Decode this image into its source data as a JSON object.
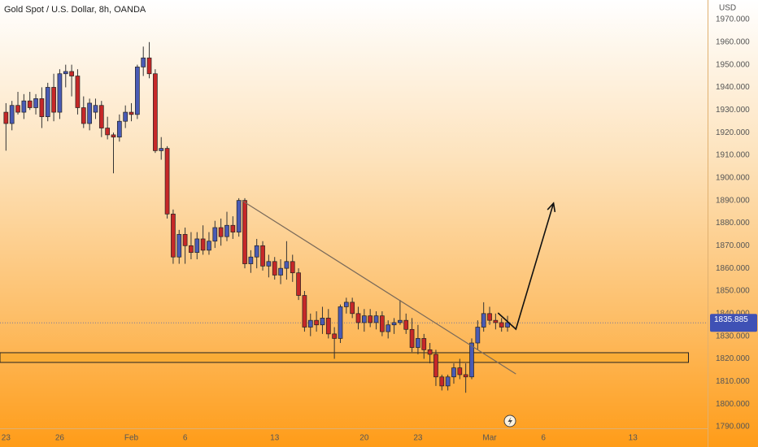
{
  "chart_data": {
    "type": "candlestick",
    "title": "Gold Spot / U.S. Dollar, 8h, OANDA",
    "currency": "USD",
    "open": [
      1929,
      1924,
      1932,
      1929,
      1934,
      1931,
      1935,
      1927,
      1940,
      1929,
      1946,
      1947,
      1945,
      1931,
      1924,
      1929,
      1932,
      1922,
      1919,
      1918,
      1925,
      1929,
      1928,
      1949,
      1953,
      1946,
      1912,
      1913,
      1884,
      1865,
      1875,
      1870,
      1867,
      1873,
      1868,
      1872,
      1878,
      1874,
      1879,
      1876,
      1890,
      1862,
      1865,
      1870,
      1861,
      1863,
      1857,
      1860,
      1863,
      1858,
      1848,
      1834,
      1837,
      1835,
      1838,
      1831,
      1829,
      1843,
      1845,
      1840,
      1836,
      1839,
      1836,
      1839,
      1832,
      1835,
      1836,
      1837,
      1833,
      1825,
      1829,
      1824,
      1822,
      1812,
      1808,
      1812,
      1816,
      1813,
      1812,
      1827,
      1834,
      1840,
      1837,
      1836,
      1834
    ],
    "high": [
      1933,
      1934,
      1938,
      1937,
      1938,
      1937,
      1940,
      1942,
      1946,
      1948,
      1950,
      1950,
      1948,
      1936,
      1935,
      1935,
      1934,
      1927,
      1920,
      1928,
      1932,
      1933,
      1950,
      1958,
      1960,
      1948,
      1918,
      1914,
      1886,
      1877,
      1878,
      1876,
      1876,
      1879,
      1876,
      1881,
      1882,
      1885,
      1883,
      1891,
      1891,
      1868,
      1873,
      1872,
      1866,
      1865,
      1864,
      1872,
      1866,
      1860,
      1850,
      1840,
      1841,
      1843,
      1842,
      1834,
      1844,
      1847,
      1847,
      1843,
      1842,
      1842,
      1841,
      1841,
      1837,
      1838,
      1846,
      1840,
      1838,
      1835,
      1831,
      1827,
      1824,
      1813,
      1813,
      1818,
      1820,
      1818,
      1829,
      1837,
      1845,
      1843,
      1840,
      1838,
      1839
    ],
    "low": [
      1912,
      1921,
      1928,
      1926,
      1930,
      1928,
      1922,
      1925,
      1925,
      1926,
      1940,
      1936,
      1928,
      1922,
      1921,
      1926,
      1918,
      1917,
      1902,
      1916,
      1922,
      1925,
      1926,
      1945,
      1944,
      1911,
      1908,
      1882,
      1862,
      1862,
      1862,
      1864,
      1864,
      1866,
      1866,
      1869,
      1870,
      1872,
      1873,
      1874,
      1860,
      1858,
      1860,
      1859,
      1856,
      1855,
      1853,
      1855,
      1854,
      1846,
      1832,
      1830,
      1832,
      1831,
      1829,
      1820,
      1827,
      1840,
      1838,
      1833,
      1832,
      1834,
      1833,
      1830,
      1829,
      1831,
      1835,
      1831,
      1823,
      1822,
      1820,
      1818,
      1808,
      1806,
      1806,
      1809,
      1811,
      1805,
      1811,
      1824,
      1832,
      1835,
      1833,
      1832,
      1832
    ],
    "close": [
      1924,
      1932,
      1929,
      1934,
      1931,
      1935,
      1927,
      1940,
      1929,
      1946,
      1947,
      1945,
      1931,
      1924,
      1933,
      1932,
      1922,
      1919,
      1918,
      1925,
      1929,
      1928,
      1949,
      1953,
      1946,
      1912,
      1913,
      1884,
      1865,
      1875,
      1870,
      1867,
      1873,
      1868,
      1872,
      1878,
      1874,
      1879,
      1876,
      1890,
      1862,
      1865,
      1870,
      1861,
      1863,
      1857,
      1860,
      1863,
      1858,
      1848,
      1834,
      1837,
      1835,
      1838,
      1831,
      1829,
      1843,
      1845,
      1840,
      1836,
      1839,
      1836,
      1839,
      1832,
      1835,
      1836,
      1837,
      1833,
      1825,
      1829,
      1824,
      1822,
      1812,
      1808,
      1812,
      1816,
      1813,
      1812,
      1827,
      1834,
      1840,
      1837,
      1836,
      1834,
      1836
    ],
    "up_color": "#4a5bb5",
    "down_color": "#c62828",
    "xlim": [
      -1,
      117.5
    ],
    "xticks": [
      {
        "value": 0,
        "label": "23"
      },
      {
        "value": 9,
        "label": "26"
      },
      {
        "value": 21,
        "label": "Feb"
      },
      {
        "value": 30,
        "label": "6"
      },
      {
        "value": 45,
        "label": "13"
      },
      {
        "value": 60,
        "label": "20"
      },
      {
        "value": 69,
        "label": "23"
      },
      {
        "value": 81,
        "label": "Mar"
      },
      {
        "value": 90,
        "label": "6"
      },
      {
        "value": 105,
        "label": "13"
      }
    ],
    "ylim": [
      1790,
      1978.6
    ],
    "yticks": [
      {
        "value": 1790,
        "label": "1790.000"
      },
      {
        "value": 1800,
        "label": "1800.000"
      },
      {
        "value": 1810,
        "label": "1810.000"
      },
      {
        "value": 1820,
        "label": "1820.000"
      },
      {
        "value": 1830,
        "label": "1830.000"
      },
      {
        "value": 1840,
        "label": "1840.000"
      },
      {
        "value": 1850,
        "label": "1850.000"
      },
      {
        "value": 1860,
        "label": "1860.000"
      },
      {
        "value": 1870,
        "label": "1870.000"
      },
      {
        "value": 1880,
        "label": "1880.000"
      },
      {
        "value": 1890,
        "label": "1890.000"
      },
      {
        "value": 1900,
        "label": "1900.000"
      },
      {
        "value": 1910,
        "label": "1910.000"
      },
      {
        "value": 1920,
        "label": "1920.000"
      },
      {
        "value": 1930,
        "label": "1930.000"
      },
      {
        "value": 1940,
        "label": "1940.000"
      },
      {
        "value": 1950,
        "label": "1950.000"
      },
      {
        "value": 1960,
        "label": "1960.000"
      },
      {
        "value": 1970,
        "label": "1970.000"
      }
    ],
    "current_price": 1835.885,
    "price_tag_color": "#3f51b5",
    "zone": {
      "x": [
        -1,
        114.3
      ],
      "y": [
        1818.4,
        1822.7
      ],
      "color": "#f5a623"
    },
    "trend_line": {
      "x": [
        39.5,
        85.4
      ],
      "y": [
        1890,
        1813.3
      ],
      "color": "#7a6a5a"
    },
    "arrow": {
      "x": [
        82.4,
        85.4,
        91.7
      ],
      "y": [
        1840.3,
        1833.1,
        1888.8
      ],
      "color": "#111111"
    }
  }
}
